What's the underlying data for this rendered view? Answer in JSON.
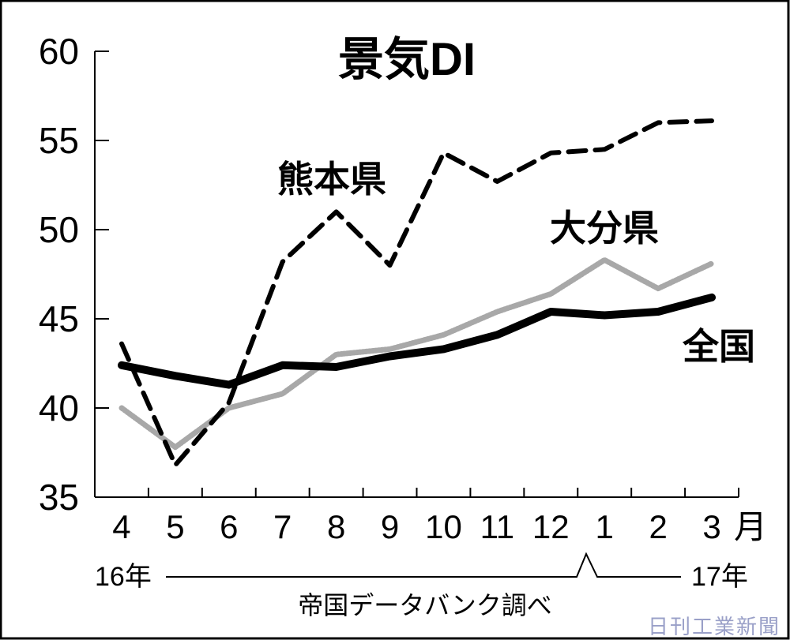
{
  "chart_data": {
    "type": "line",
    "title": "景気DI",
    "categories": [
      "4",
      "5",
      "6",
      "7",
      "8",
      "9",
      "10",
      "11",
      "12",
      "1",
      "2",
      "3"
    ],
    "month_unit": "月",
    "year_start": "16年",
    "year_end": "17年",
    "ylim": [
      35,
      60
    ],
    "yticks": [
      "35",
      "40",
      "45",
      "50",
      "55",
      "60"
    ],
    "series": [
      {
        "name": "熊本県",
        "style": "dashed",
        "color": "#000000",
        "values": [
          43.6,
          36.8,
          40.3,
          48.2,
          51.0,
          48.0,
          54.3,
          52.7,
          54.3,
          54.5,
          56.0,
          56.1
        ]
      },
      {
        "name": "大分県",
        "style": "dotted-gray",
        "color": "#a8a8a8",
        "values": [
          40.0,
          37.8,
          40.0,
          40.8,
          43.0,
          43.3,
          44.1,
          45.4,
          46.4,
          48.3,
          46.7,
          48.1
        ]
      },
      {
        "name": "全国",
        "style": "solid-thick",
        "color": "#000000",
        "values": [
          42.4,
          41.8,
          41.3,
          42.4,
          42.3,
          42.9,
          43.3,
          44.1,
          45.4,
          45.2,
          45.4,
          46.2
        ]
      }
    ],
    "grid": false,
    "legend": "inline labels"
  },
  "source_note": "帝国データバンク調べ",
  "watermark": "日刊工業新聞"
}
